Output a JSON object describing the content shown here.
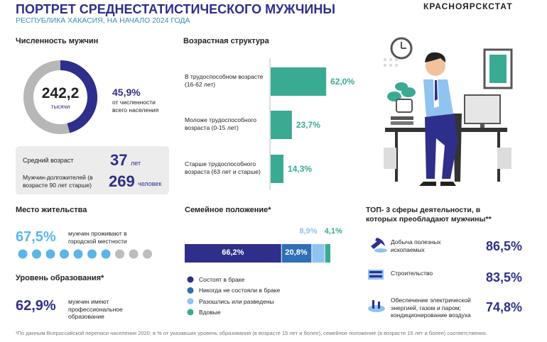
{
  "header": {
    "title": "ПОРТРЕТ СРЕДНЕСТАТИСТИЧЕСКОГО МУЖЧИНЫ",
    "subtitle": "РЕСПУБЛИКА ХАКАСИЯ, НА НАЧАЛО 2024 ГОДА",
    "brand": "КРАСНОЯРСКСТАТ"
  },
  "population": {
    "title": "Численность мужчин",
    "value": "242,2",
    "unit": "тысячи",
    "share": 45.9,
    "share_label": "45,9%",
    "share_text": "от численности всего населения"
  },
  "stats": [
    {
      "label": "Средний возраст",
      "value": "37",
      "unit": "лет"
    },
    {
      "label": "Мужчин-долгожителей (в возрасте 90 лет старше)",
      "value": "269",
      "unit": "человек"
    }
  ],
  "age": {
    "title": "Возрастная структура",
    "categories": [
      "В трудоспособном возрасте (16-62 лет)",
      "Моложе трудоспособного возраста (0-15 лет)",
      "Старше трудоспособного возраста (63 лет и старше)"
    ],
    "values": [
      62.0,
      23.7,
      14.3
    ],
    "value_labels": [
      "62,0%",
      "23,7%",
      "14,3%"
    ],
    "color": "#3aaa93"
  },
  "residence": {
    "title": "Место жительства",
    "value": 67.5,
    "value_label": "67,5%",
    "text": "мужчин проживают в городской местности"
  },
  "education": {
    "title": "Уровень образования*",
    "value": "62,9%",
    "text": "мужчин имеют профессиональное образование"
  },
  "family": {
    "title": "Семейное положение*",
    "categories": [
      "Состоят в браке",
      "Никогда не состояли в браке",
      "Разошлись или разведены",
      "Вдовые"
    ],
    "values": [
      66.2,
      20.8,
      8.9,
      4.1
    ],
    "value_labels": [
      "66,2%",
      "20,8%",
      "8,9%",
      "4,1%"
    ],
    "colors": [
      "#2e2f8a",
      "#2f6fb5",
      "#8fc3f0",
      "#3aaa93"
    ]
  },
  "top": {
    "title": "ТОП- 3 сферы деятельности, в которых преобладают мужчины**",
    "items": [
      {
        "label": "Добыча полезных ископаемых",
        "value": "86,5%"
      },
      {
        "label": "Строительство",
        "value": "83,5%"
      },
      {
        "label": "Обеспечение электрической энергией, газом и паром; кондиционирование воздуха",
        "value": "74,8%"
      }
    ]
  },
  "footnote": "¹По данным Всероссийской переписи населения 2020; в % от указавших уровень образования (в возрасте 15 лет и более), семейное положение (в возрасте 16 лет и более) соответственно."
}
